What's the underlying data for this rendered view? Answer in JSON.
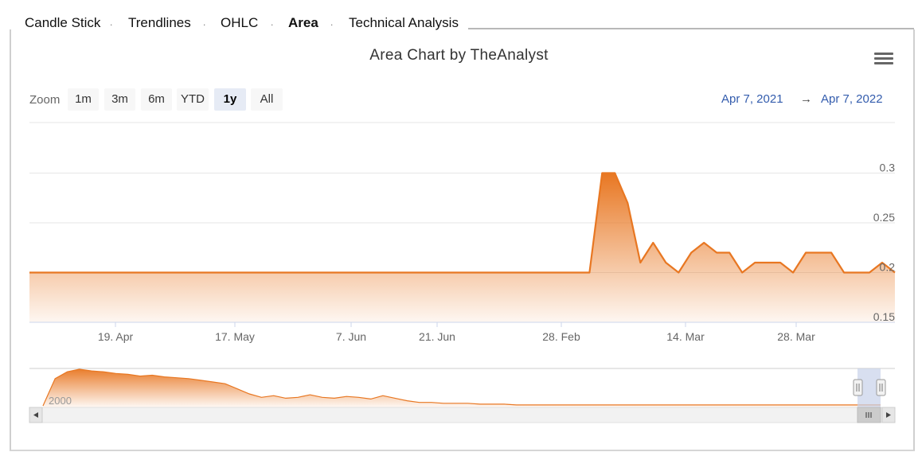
{
  "tabs": [
    {
      "label": "Candle Stick",
      "active": false
    },
    {
      "label": "Trendlines",
      "active": false
    },
    {
      "label": "OHLC",
      "active": false
    },
    {
      "label": "Area",
      "active": true
    },
    {
      "label": "Technical Analysis",
      "active": false
    }
  ],
  "tab_separator": ".",
  "zoom": {
    "label": "Zoom",
    "buttons": [
      "1m",
      "3m",
      "6m",
      "YTD",
      "1y",
      "All"
    ],
    "selected": "1y"
  },
  "range": {
    "from": "Apr 7, 2021",
    "arrow": "→",
    "to": "Apr 7, 2022"
  },
  "icons": {
    "menu": "hamburger-menu-icon",
    "scroll_left": "arrow-left-icon",
    "scroll_right": "arrow-right-icon",
    "handle": "grip-icon"
  },
  "colors": {
    "series": "#e87722",
    "fill_top": "#e87722",
    "fill_bottom": "#fdeee2",
    "selected_button": "#e6ebf5",
    "range_text": "#335cad",
    "navigator_mask": "#c8d2ea"
  },
  "chart_data": {
    "type": "area",
    "title": "Area Chart by TheAnalyst",
    "xlabel": "",
    "ylabel": "",
    "yticks": [
      0.15,
      0.2,
      0.25,
      0.3
    ],
    "ylim": [
      0.15,
      0.31
    ],
    "xticks": [
      "19. Apr",
      "17. May",
      "7. Jun",
      "21. Jun",
      "28. Feb",
      "14. Mar",
      "28. Mar"
    ],
    "series": [
      {
        "values": [
          0.2,
          0.2,
          0.2,
          0.2,
          0.2,
          0.2,
          0.2,
          0.2,
          0.2,
          0.2,
          0.2,
          0.2,
          0.2,
          0.2,
          0.2,
          0.2,
          0.2,
          0.2,
          0.2,
          0.2,
          0.2,
          0.2,
          0.2,
          0.2,
          0.2,
          0.2,
          0.2,
          0.2,
          0.2,
          0.2,
          0.2,
          0.2,
          0.2,
          0.2,
          0.2,
          0.2,
          0.2,
          0.2,
          0.2,
          0.2,
          0.2,
          0.2,
          0.2,
          0.2,
          0.2,
          0.3,
          0.3,
          0.27,
          0.21,
          0.23,
          0.21,
          0.2,
          0.22,
          0.23,
          0.22,
          0.22,
          0.2,
          0.21,
          0.21,
          0.21,
          0.2,
          0.22,
          0.22,
          0.22,
          0.2,
          0.2,
          0.2,
          0.21,
          0.2
        ]
      }
    ],
    "navigator": {
      "label": "2000",
      "values": [
        0,
        32,
        40,
        43,
        41,
        40,
        38,
        37,
        35,
        36,
        34,
        33,
        32,
        30,
        28,
        26,
        20,
        14,
        10,
        12,
        9,
        10,
        13,
        10,
        9,
        11,
        10,
        8,
        12,
        9,
        6,
        4,
        4,
        3,
        3,
        3,
        2,
        2,
        2,
        1,
        1,
        1,
        1,
        1,
        1,
        1,
        1,
        1,
        1,
        1,
        1,
        1,
        1,
        1,
        1,
        1,
        1,
        1,
        1,
        1,
        1,
        1,
        1,
        1,
        1,
        1,
        1,
        1,
        1,
        1
      ]
    }
  }
}
